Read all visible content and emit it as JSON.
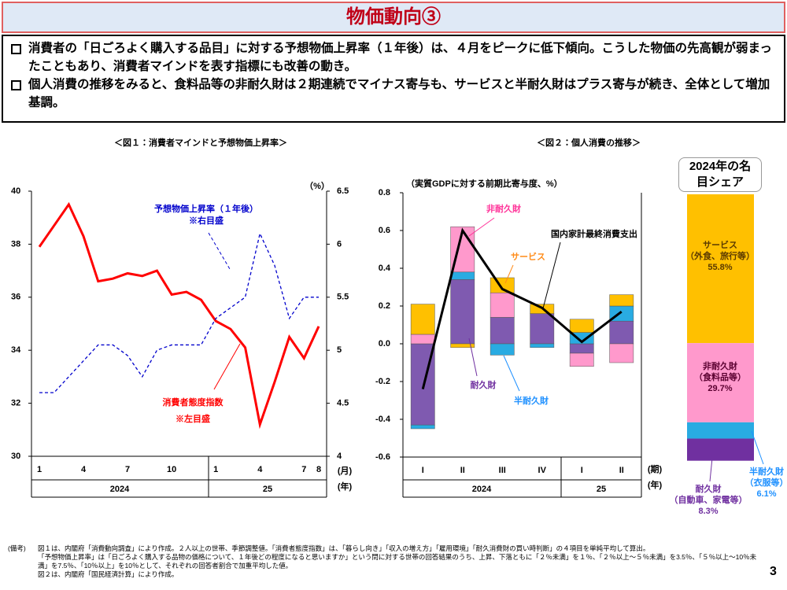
{
  "header": {
    "title": "物価動向③"
  },
  "bullets": [
    "消費者の「日ごろよく購入する品目」に対する予想物価上昇率（１年後）は、４月をピークに低下傾向。こうした物価の先高観が弱まったこともあり、消費者マインドを表す指標にも改善の動き。",
    "個人消費の推移をみると、食料品等の非耐久財は２期連続でマイナス寄与も、サービスと半耐久財はプラス寄与が続き、全体として増加基調。"
  ],
  "chart_data": [
    {
      "type": "line",
      "title": "＜図１：消費者マインドと予想物価上昇率＞",
      "categories": [
        "1",
        null,
        null,
        "4",
        null,
        null,
        "7",
        null,
        null,
        "10",
        null,
        null,
        "1",
        null,
        null,
        "4",
        null,
        null,
        "7",
        "8"
      ],
      "x_unit": "(月)",
      "x_groups": [
        "2024",
        "25"
      ],
      "x_group_unit": "(年)",
      "ylim": [
        30,
        40
      ],
      "yticks": [
        30,
        32,
        34,
        36,
        38,
        40
      ],
      "y2lim": [
        4,
        6.5
      ],
      "y2ticks": [
        4,
        4.5,
        5,
        5.5,
        6,
        6.5
      ],
      "y2_unit": "（%）",
      "series": [
        {
          "name": "消費者態度指数",
          "note": "※左目盛",
          "color": "#ff0000",
          "values": [
            37.9,
            38.7,
            39.5,
            38.3,
            36.6,
            36.7,
            36.9,
            36.8,
            37.0,
            36.1,
            36.2,
            35.9,
            35.1,
            34.8,
            34.1,
            31.2,
            32.8,
            34.5,
            33.7,
            34.9
          ]
        },
        {
          "name": "予想物価上昇率（１年後）",
          "note": "※右目盛",
          "color": "#0000cc",
          "axis": "y2",
          "dash": true,
          "values": [
            4.6,
            4.6,
            4.75,
            4.9,
            5.05,
            5.05,
            4.95,
            4.75,
            5.0,
            5.05,
            5.05,
            5.05,
            5.3,
            5.4,
            5.5,
            6.1,
            5.8,
            5.3,
            5.5,
            5.5
          ]
        }
      ]
    },
    {
      "type": "bar",
      "stacked": true,
      "title": "＜図２：個人消費の推移＞",
      "y_label": "（実質GDPに対する前期比寄与度、%）",
      "categories": [
        "I",
        "II",
        "III",
        "IV",
        "I",
        "II"
      ],
      "x_unit": "(期)",
      "x_groups": [
        "2024",
        "25"
      ],
      "x_group_unit": "(年)",
      "ylim": [
        -0.6,
        0.8
      ],
      "yticks": [
        -0.6,
        -0.4,
        -0.2,
        {
          "value": 0,
          "label": "0.0"
        },
        0.2,
        0.4,
        0.6,
        0.8
      ],
      "series": [
        {
          "name": "耐久財",
          "color": "#7f5ab0",
          "values": [
            -0.43,
            0.34,
            0.14,
            0.16,
            -0.05,
            0.12
          ]
        },
        {
          "name": "半耐久財",
          "color": "#29abe2",
          "values": [
            -0.02,
            0.04,
            -0.06,
            -0.02,
            0.06,
            0.08
          ]
        },
        {
          "name": "非耐久財",
          "color": "#ff99cc",
          "values": [
            0.05,
            0.24,
            0.13,
            0,
            -0.07,
            -0.1
          ]
        },
        {
          "name": "サービス",
          "color": "#ffc000",
          "values": [
            0.16,
            -0.02,
            0.08,
            0.05,
            0.07,
            0.06
          ]
        },
        {
          "name": "国内家計最終消費支出",
          "type": "line",
          "color": "#000000",
          "values": [
            -0.24,
            0.6,
            0.29,
            0.19,
            0.01,
            0.17
          ]
        }
      ]
    },
    {
      "type": "share",
      "title": "2024年の名目シェア",
      "series": [
        {
          "name": "サービス",
          "detail": "（外食、旅行等）",
          "color": "#ffc000",
          "values": [
            55.8
          ],
          "value_labels": [
            "55.8%"
          ]
        },
        {
          "name": "非耐久財",
          "detail": "（食料品等）",
          "color": "#ff99cc",
          "values": [
            29.7
          ],
          "value_labels": [
            "29.7%"
          ]
        },
        {
          "name": "半耐久財",
          "detail": "（衣服等）",
          "color": "#29abe2",
          "values": [
            6.1
          ],
          "value_labels": [
            "6.1%"
          ]
        },
        {
          "name": "耐久財",
          "detail": "（自動車、家電等）",
          "color": "#7030a0",
          "values": [
            8.3
          ],
          "value_labels": [
            "8.3%"
          ]
        }
      ]
    }
  ],
  "notes": {
    "label": "(備考)",
    "lines": [
      "図１は、内閣府「消費動向調査」により作成。２人以上の世帯、季節調整値。「消費者態度指数」は、「暮らし向き」「収入の増え方」「雇用環境」「耐久消費財の買い時判断」の４項目を単純平均して算出。",
      "「予想物価上昇率」は「日ごろよく購入する品物の価格について、１年後どの程度になると思いますか」という問に対する世帯の回答結果のうち、上昇、下落ともに「２％未満」を１％、「２％以上～５％未満」を3.5％、「５％以上～10％未満」を7.5％、「10％以上」を10％として、それぞれの回答者割合で加重平均した値。",
      "図２は、内閣府「国民経済計算」により作成。"
    ]
  },
  "page_number": "3"
}
